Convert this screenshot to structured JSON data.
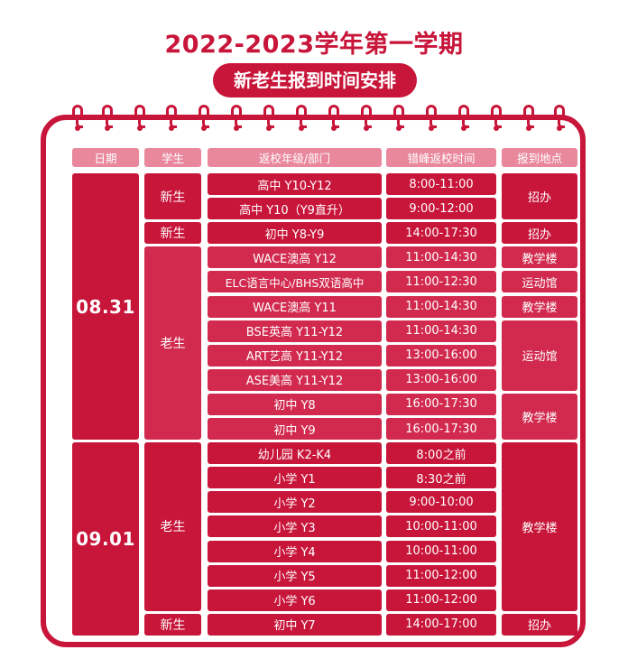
{
  "title": "2022-2023学年第一学期",
  "subtitle": "新老生报到时间安排",
  "headers": [
    "日期",
    "学生",
    "返校年级/部门",
    "错峰返校时间",
    "报到地点"
  ],
  "dates": [
    "08.31",
    "09.01"
  ],
  "students": [
    "新生",
    "新生",
    "老生",
    "老生",
    "新生"
  ],
  "grades": [
    "高中 Y10-Y12",
    "高中 Y10（Y9直升）",
    "初中 Y8-Y9",
    "WACE澳高 Y12",
    "ELC语言中心/BHS双语高中",
    "WACE澳高 Y11",
    "BSE英高 Y11-Y12",
    "ART艺高 Y11-Y12",
    "ASE美高 Y11-Y12",
    "初中 Y8",
    "初中 Y9",
    "幼儿园 K2-K4",
    "小学 Y1",
    "小学 Y2",
    "小学 Y3",
    "小学 Y4",
    "小学 Y5",
    "小学 Y6",
    "初中 Y7"
  ],
  "times": [
    "8:00-11:00",
    "9:00-12:00",
    "14:00-17:30",
    "11:00-14:30",
    "11:00-12:30",
    "11:00-14:30",
    "11:00-14:30",
    "13:00-16:00",
    "13:00-16:00",
    "16:00-17:30",
    "16:00-17:30",
    "8:00之前",
    "8:30之前",
    "9:00-10:00",
    "10:00-11:00",
    "10:00-11:00",
    "11:00-12:00",
    "11:00-12:00",
    "14:00-17:00"
  ],
  "locations": [
    "招办",
    "招办",
    "教学楼",
    "运动馆",
    "教学楼",
    "运动馆",
    "教学楼",
    "教学楼",
    "招办"
  ],
  "colors": {
    "primary": "#c8153a",
    "secondary": "#d12a4e",
    "header": "#e9889c"
  }
}
